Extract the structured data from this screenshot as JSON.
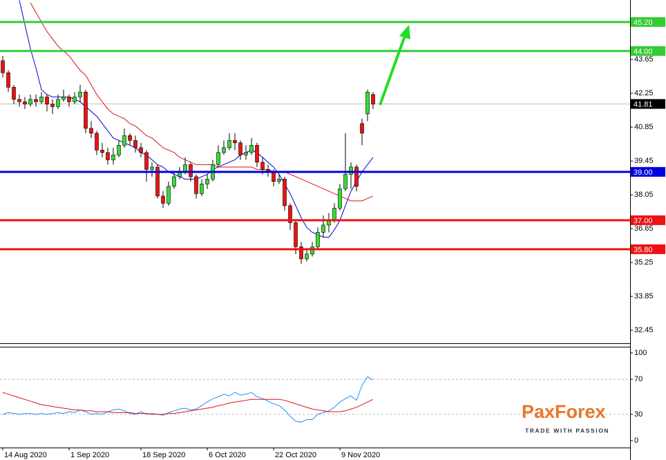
{
  "chart_data": [
    {
      "type": "candlestick",
      "categories": [
        "14 Aug 2020",
        null,
        null,
        null,
        null,
        null,
        null,
        null,
        null,
        null,
        null,
        null,
        "1 Sep 2020",
        null,
        null,
        null,
        null,
        null,
        null,
        null,
        null,
        null,
        null,
        null,
        null,
        "18 Sep 2020",
        null,
        null,
        null,
        null,
        null,
        null,
        null,
        null,
        null,
        null,
        null,
        "6 Oct 2020",
        null,
        null,
        null,
        null,
        null,
        null,
        null,
        null,
        null,
        null,
        null,
        "22 Oct 2020",
        null,
        null,
        null,
        null,
        null,
        null,
        null,
        null,
        null,
        null,
        null,
        "9 Nov 2020",
        null,
        null,
        null,
        null,
        null,
        null
      ],
      "open": [
        43.6,
        43.1,
        42.5,
        42.0,
        41.9,
        41.8,
        42.0,
        41.9,
        42.1,
        41.8,
        41.7,
        42.0,
        42.1,
        41.9,
        42.1,
        42.3,
        40.8,
        40.6,
        39.9,
        39.8,
        39.5,
        39.7,
        40.1,
        40.5,
        40.3,
        40.0,
        39.8,
        39.1,
        39.2,
        38.0,
        37.7,
        38.4,
        38.8,
        39.0,
        39.3,
        38.8,
        38.1,
        38.5,
        38.7,
        39.3,
        39.8,
        40.0,
        40.3,
        40.2,
        39.7,
        39.8,
        40.1,
        39.4,
        39.1,
        39.0,
        38.6,
        38.7,
        37.6,
        36.9,
        35.9,
        35.4,
        35.6,
        35.9,
        36.5,
        36.8,
        37.0,
        37.5,
        38.3,
        38.9,
        39.2,
        41.0,
        41.4,
        42.2
      ],
      "high": [
        43.8,
        43.2,
        42.6,
        42.2,
        42.1,
        42.2,
        42.2,
        42.3,
        42.2,
        42.0,
        42.2,
        42.4,
        42.2,
        42.3,
        42.6,
        42.4,
        41.1,
        40.7,
        40.2,
        40.0,
        40.0,
        40.3,
        40.8,
        40.6,
        40.5,
        40.2,
        39.9,
        39.4,
        39.3,
        38.2,
        38.6,
        39.0,
        39.2,
        39.6,
        39.4,
        38.9,
        38.7,
        38.9,
        39.5,
        40.1,
        40.3,
        40.6,
        40.6,
        40.3,
        40.1,
        40.4,
        40.2,
        39.6,
        39.3,
        39.1,
        38.9,
        38.8,
        37.7,
        37.0,
        36.1,
        35.8,
        36.1,
        36.7,
        37.2,
        37.3,
        37.7,
        38.5,
        40.6,
        39.4,
        39.3,
        41.2,
        42.4,
        42.3
      ],
      "low": [
        42.9,
        42.3,
        41.8,
        41.7,
        41.6,
        41.7,
        41.7,
        41.8,
        41.5,
        41.4,
        41.6,
        41.9,
        41.7,
        41.8,
        41.9,
        40.6,
        40.4,
        39.7,
        39.6,
        39.3,
        39.3,
        39.6,
        40.0,
        40.1,
        39.8,
        39.6,
        38.6,
        38.8,
        37.9,
        37.5,
        37.6,
        38.3,
        38.7,
        38.9,
        38.6,
        37.9,
        38.0,
        38.3,
        38.6,
        39.2,
        39.7,
        39.9,
        39.9,
        39.5,
        39.5,
        39.7,
        39.2,
        38.9,
        38.8,
        38.4,
        38.5,
        37.4,
        36.6,
        35.6,
        35.2,
        35.3,
        35.5,
        35.8,
        36.3,
        36.5,
        36.9,
        37.4,
        38.2,
        38.3,
        38.2,
        40.1,
        41.1,
        41.6
      ],
      "close": [
        43.1,
        42.5,
        42.0,
        41.9,
        41.8,
        42.0,
        41.9,
        42.1,
        41.8,
        41.7,
        42.0,
        42.1,
        41.9,
        42.1,
        42.3,
        40.8,
        40.6,
        39.9,
        39.8,
        39.5,
        39.7,
        40.1,
        40.5,
        40.3,
        40.0,
        39.8,
        39.1,
        39.2,
        38.0,
        37.7,
        38.4,
        38.8,
        39.0,
        39.3,
        38.8,
        38.1,
        38.5,
        38.7,
        39.3,
        39.8,
        40.0,
        40.3,
        40.2,
        39.7,
        39.8,
        40.1,
        39.4,
        39.1,
        39.0,
        38.6,
        38.7,
        37.6,
        36.9,
        35.9,
        35.4,
        35.6,
        35.9,
        36.5,
        36.8,
        37.0,
        37.5,
        38.3,
        38.9,
        39.2,
        38.4,
        40.6,
        42.3,
        41.8
      ],
      "up_color": "#33dd33",
      "down_color": "#ee1111",
      "series": [
        {
          "color": "#0000cc",
          "values": [
            null,
            null,
            null,
            46.1,
            45.1,
            44.1,
            43.3,
            42.4,
            42.2,
            42.1,
            42.1,
            42.1,
            42.1,
            42.0,
            41.9,
            41.7,
            41.5,
            41.3,
            41.0,
            40.7,
            40.4,
            40.3,
            40.2,
            40.1,
            40.0,
            39.8,
            39.7,
            39.5,
            39.3,
            39.2,
            39.0,
            38.9,
            38.8,
            38.7,
            38.7,
            38.7,
            38.8,
            38.9,
            39.1,
            39.2,
            39.3,
            39.4,
            39.5,
            39.7,
            39.8,
            39.9,
            39.8,
            39.6,
            39.4,
            39.2,
            38.9,
            38.5,
            38.1,
            37.6,
            37.1,
            36.7,
            36.5,
            36.4,
            36.3,
            36.3,
            36.6,
            37.0,
            37.6,
            38.2,
            38.6,
            39.0,
            39.3,
            39.6
          ]
        },
        {
          "color": "#dd1111",
          "values": [
            null,
            null,
            null,
            null,
            null,
            46.0,
            45.6,
            45.2,
            44.8,
            44.5,
            44.2,
            44.0,
            43.8,
            43.5,
            43.2,
            43.0,
            42.6,
            42.2,
            41.9,
            41.6,
            41.4,
            41.3,
            41.2,
            41.0,
            40.9,
            40.7,
            40.5,
            40.4,
            40.2,
            40.0,
            39.9,
            39.8,
            39.6,
            39.5,
            39.4,
            39.3,
            39.3,
            39.3,
            39.3,
            39.2,
            39.2,
            39.2,
            39.2,
            39.2,
            39.2,
            39.2,
            39.1,
            39.1,
            39.1,
            39.0,
            39.0,
            39.0,
            38.9,
            38.8,
            38.7,
            38.6,
            38.5,
            38.4,
            38.3,
            38.2,
            38.1,
            38.0,
            37.9,
            37.8,
            37.8,
            37.8,
            37.9,
            38.0
          ]
        }
      ],
      "levels": [
        {
          "value": 45.2,
          "label": "45.20",
          "color": "#33cc33"
        },
        {
          "value": 44.0,
          "label": "44.00",
          "color": "#33cc33"
        },
        {
          "value": 39.0,
          "label": "39.00",
          "color": "#0000dd"
        },
        {
          "value": 37.0,
          "label": "37.00",
          "color": "#ee1111"
        },
        {
          "value": 35.8,
          "label": "35.80",
          "color": "#ee1111"
        }
      ],
      "last_price": 41.81,
      "ylim": [
        31.91,
        46.11
      ],
      "yticks": [
        43.65,
        42.25,
        40.85,
        39.45,
        38.05,
        36.65,
        35.25,
        33.85,
        32.45
      ]
    },
    {
      "type": "line",
      "series": [
        {
          "color": "#1e90ff",
          "values": [
            30,
            32,
            31,
            30,
            31,
            31,
            30,
            31,
            30,
            31,
            32,
            31,
            33,
            32,
            35,
            33,
            30,
            31,
            30,
            33,
            35,
            36,
            34,
            31,
            30,
            33,
            30,
            31,
            30,
            29,
            32,
            34,
            36,
            37,
            35,
            36,
            40,
            44,
            48,
            50,
            53,
            51,
            55,
            52,
            53,
            55,
            50,
            48,
            45,
            42,
            40,
            35,
            28,
            22,
            21,
            24,
            24,
            30,
            32,
            34,
            38,
            44,
            48,
            51,
            46,
            63,
            73,
            69
          ]
        },
        {
          "color": "#dd1111",
          "values": [
            55,
            53,
            51,
            49,
            47,
            45,
            43,
            41,
            40,
            39,
            38,
            37,
            36,
            35,
            35,
            34,
            34,
            33,
            33,
            33,
            32,
            32,
            32,
            32,
            31,
            31,
            31,
            30,
            30,
            30,
            31,
            31,
            32,
            33,
            34,
            35,
            36,
            37,
            38,
            40,
            41,
            43,
            44,
            45,
            46,
            47,
            47,
            47,
            47,
            47,
            47,
            46,
            44,
            42,
            40,
            38,
            36,
            35,
            34,
            33,
            33,
            33,
            34,
            36,
            38,
            41,
            44,
            47
          ]
        }
      ],
      "reference_lines": [
        70,
        30
      ],
      "ylim": [
        -7.9,
        106.3
      ],
      "yticks": [
        100,
        70,
        30,
        0
      ]
    }
  ],
  "logo": {
    "name": "PaxForex",
    "tagline": "TRADE WITH PASSION"
  }
}
